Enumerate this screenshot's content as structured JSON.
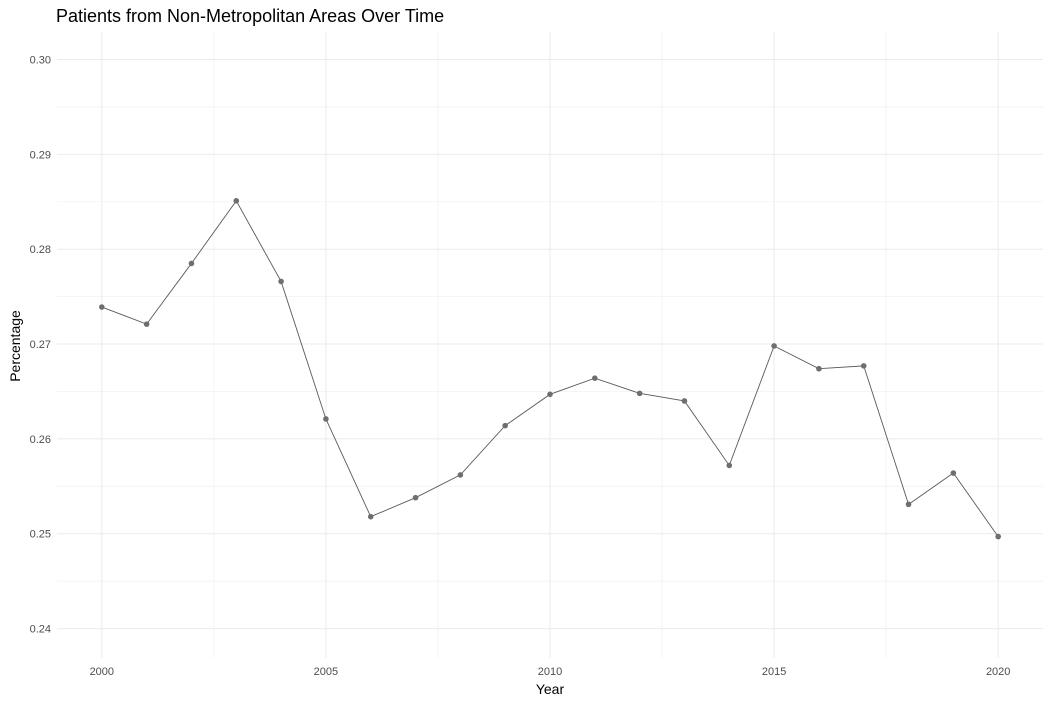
{
  "chart_data": {
    "type": "line",
    "title": "Patients from Non-Metropolitan Areas Over Time",
    "xlabel": "Year",
    "ylabel": "Percentage",
    "x": [
      2000,
      2001,
      2002,
      2003,
      2004,
      2005,
      2006,
      2007,
      2008,
      2009,
      2010,
      2011,
      2012,
      2013,
      2014,
      2015,
      2016,
      2017,
      2018,
      2019,
      2020
    ],
    "series": [
      {
        "values": [
          0.2739,
          0.2721,
          0.2785,
          0.2851,
          0.2766,
          0.2621,
          0.2518,
          0.2538,
          0.2562,
          0.2614,
          0.2647,
          0.2664,
          0.2648,
          0.264,
          0.2572,
          0.2698,
          0.2674,
          0.2677,
          0.2531,
          0.2564,
          0.2497
        ],
        "color": "#5a5a5a"
      }
    ],
    "xticks": [
      "2000",
      "2005",
      "2010",
      "2015",
      "2020"
    ],
    "yticks": [
      "0.24",
      "0.25",
      "0.26",
      "0.27",
      "0.28",
      "0.29",
      "0.30"
    ],
    "xlim": [
      1999,
      2021
    ],
    "ylim": [
      0.2369,
      0.3029
    ],
    "grid": true,
    "legend": "none",
    "theme": "minimal"
  }
}
